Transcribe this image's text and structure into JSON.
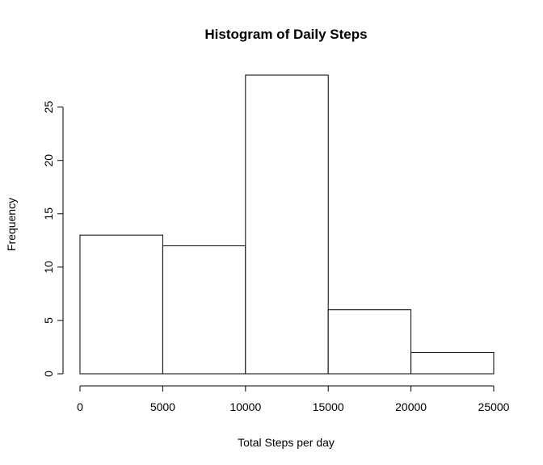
{
  "chart_data": {
    "type": "bar",
    "title": "Histogram of Daily Steps",
    "xlabel": "Total Steps per day",
    "ylabel": "Frequency",
    "bins": [
      {
        "from": 0,
        "to": 5000,
        "count": 13
      },
      {
        "from": 5000,
        "to": 10000,
        "count": 12
      },
      {
        "from": 10000,
        "to": 15000,
        "count": 28
      },
      {
        "from": 15000,
        "to": 20000,
        "count": 6
      },
      {
        "from": 20000,
        "to": 25000,
        "count": 2
      }
    ],
    "xlim": [
      0,
      25000
    ],
    "ylim": [
      0,
      28
    ],
    "x_ticks": [
      0,
      5000,
      10000,
      15000,
      20000,
      25000
    ],
    "x_tick_labels": [
      "0",
      "5000",
      "10000",
      "15000",
      "20000",
      "25000"
    ],
    "y_ticks": [
      0,
      5,
      10,
      15,
      20,
      25
    ],
    "y_tick_labels": [
      "0",
      "5",
      "10",
      "15",
      "20",
      "25"
    ],
    "grid": false,
    "bar_fill": "#ffffff",
    "bar_stroke": "#000000"
  }
}
